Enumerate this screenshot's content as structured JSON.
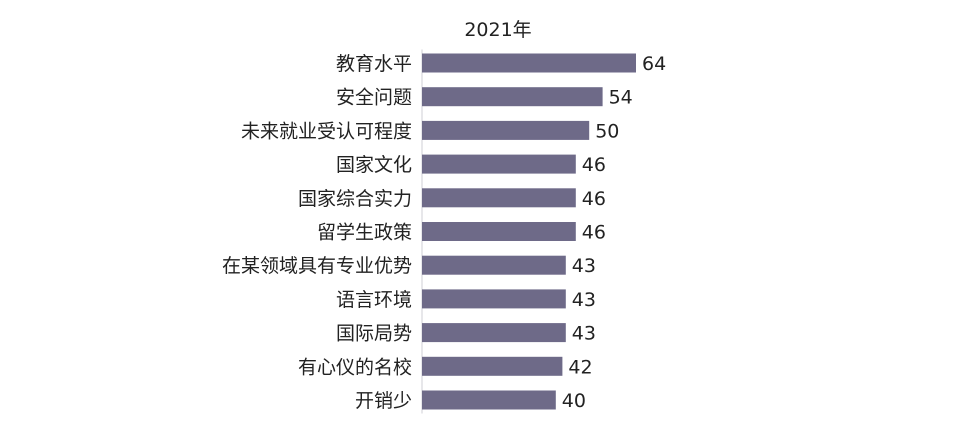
{
  "chart_data": {
    "type": "bar",
    "orientation": "horizontal",
    "title": "2021年",
    "categories": [
      "教育水平",
      "安全问题",
      "未来就业受认可程度",
      "国家文化",
      "国家综合实力",
      "留学生政策",
      "在某领域具有专业优势",
      "语言环境",
      "国际局势",
      "有心仪的名校",
      "开销少"
    ],
    "values": [
      64,
      54,
      50,
      46,
      46,
      46,
      43,
      43,
      43,
      42,
      40
    ],
    "bar_color": "#6e6a88",
    "data_labels": true,
    "grid": false,
    "xlim": [
      0,
      64
    ]
  }
}
